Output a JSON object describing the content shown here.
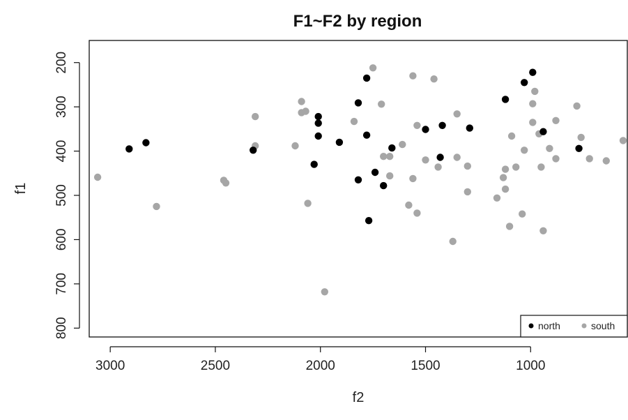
{
  "chart_data": {
    "type": "scatter",
    "title": "F1~F2 by region",
    "xlabel": "f2",
    "ylabel": "f1",
    "xlim": [
      3100,
      540
    ],
    "ylim": [
      820,
      150
    ],
    "x_reversed": true,
    "y_reversed": true,
    "x_ticks": [
      3000,
      2500,
      2000,
      1500,
      1000
    ],
    "y_ticks": [
      200,
      300,
      400,
      500,
      600,
      700,
      800
    ],
    "grid": false,
    "legend_position": "bottom-right",
    "colors": {
      "north": "#000000",
      "south": "#a6a6a6"
    },
    "series": [
      {
        "name": "north",
        "points": [
          [
            2910,
            395
          ],
          [
            2830,
            381
          ],
          [
            2320,
            398
          ],
          [
            2010,
            322
          ],
          [
            2010,
            337
          ],
          [
            2010,
            366
          ],
          [
            2030,
            430
          ],
          [
            1910,
            380
          ],
          [
            1820,
            291
          ],
          [
            1780,
            235
          ],
          [
            1780,
            364
          ],
          [
            1820,
            465
          ],
          [
            1740,
            448
          ],
          [
            1700,
            478
          ],
          [
            1770,
            557
          ],
          [
            1660,
            393
          ],
          [
            1500,
            351
          ],
          [
            1420,
            342
          ],
          [
            1430,
            414
          ],
          [
            1290,
            348
          ],
          [
            1120,
            283
          ],
          [
            1030,
            245
          ],
          [
            990,
            222
          ],
          [
            940,
            356
          ],
          [
            770,
            394
          ]
        ]
      },
      {
        "name": "south",
        "points": [
          [
            3060,
            459
          ],
          [
            2780,
            525
          ],
          [
            2460,
            466
          ],
          [
            2450,
            472
          ],
          [
            2310,
            322
          ],
          [
            2310,
            388
          ],
          [
            2120,
            388
          ],
          [
            2090,
            288
          ],
          [
            2090,
            313
          ],
          [
            2070,
            310
          ],
          [
            2060,
            518
          ],
          [
            1980,
            718
          ],
          [
            1840,
            333
          ],
          [
            1750,
            212
          ],
          [
            1710,
            294
          ],
          [
            1700,
            412
          ],
          [
            1670,
            412
          ],
          [
            1670,
            456
          ],
          [
            1610,
            385
          ],
          [
            1580,
            522
          ],
          [
            1560,
            230
          ],
          [
            1560,
            462
          ],
          [
            1540,
            342
          ],
          [
            1540,
            540
          ],
          [
            1500,
            420
          ],
          [
            1460,
            237
          ],
          [
            1440,
            436
          ],
          [
            1370,
            604
          ],
          [
            1350,
            414
          ],
          [
            1350,
            316
          ],
          [
            1300,
            434
          ],
          [
            1300,
            492
          ],
          [
            1160,
            506
          ],
          [
            1130,
            460
          ],
          [
            1120,
            486
          ],
          [
            1120,
            441
          ],
          [
            1100,
            570
          ],
          [
            1090,
            366
          ],
          [
            1070,
            436
          ],
          [
            1040,
            542
          ],
          [
            1030,
            398
          ],
          [
            990,
            293
          ],
          [
            990,
            335
          ],
          [
            980,
            265
          ],
          [
            960,
            361
          ],
          [
            950,
            436
          ],
          [
            940,
            580
          ],
          [
            910,
            394
          ],
          [
            880,
            331
          ],
          [
            880,
            417
          ],
          [
            780,
            298
          ],
          [
            760,
            369
          ],
          [
            720,
            417
          ],
          [
            640,
            422
          ],
          [
            560,
            376
          ]
        ]
      }
    ]
  }
}
